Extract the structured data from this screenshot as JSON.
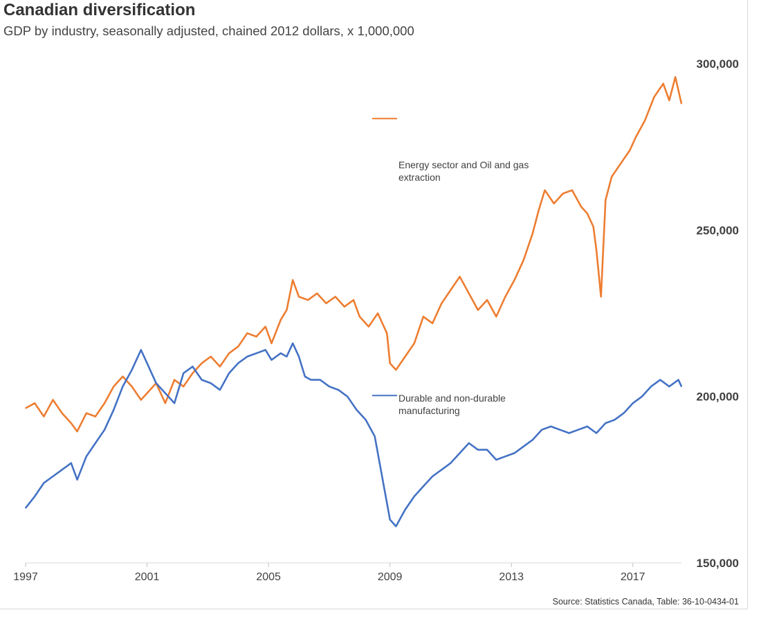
{
  "title": "Canadian diversification",
  "subtitle": "GDP by industry, seasonally adjusted, chained 2012 dollars, x 1,000,000",
  "source": "Source: Statistics Canada, Table: 36-10-0434-01",
  "colors": {
    "energy": "#ed7d31",
    "manufacturing": "#4472c4"
  },
  "chart_data": {
    "type": "line",
    "title": "Canadian diversification",
    "subtitle": "GDP by industry, seasonally adjusted, chained 2012 dollars, x 1,000,000",
    "x_ticks": [
      "1997",
      "2001",
      "2005",
      "2009",
      "2013",
      "2017"
    ],
    "y_ticks": [
      "150,000",
      "200,000",
      "250,000",
      "300,000"
    ],
    "xlim": [
      1997,
      2018.6
    ],
    "ylim": [
      150000,
      300000
    ],
    "y_axis_side": "right",
    "grid": false,
    "series": [
      {
        "name": "Energy sector and Oil and gas extraction",
        "label_lines": [
          "Energy sector and Oil and gas",
          "extraction"
        ],
        "color": "#ed7d31",
        "points": [
          [
            1997.0,
            196500
          ],
          [
            1997.3,
            198000
          ],
          [
            1997.6,
            194000
          ],
          [
            1997.9,
            199000
          ],
          [
            1998.2,
            195000
          ],
          [
            1998.5,
            192000
          ],
          [
            1998.7,
            189500
          ],
          [
            1999.0,
            195000
          ],
          [
            1999.3,
            194000
          ],
          [
            1999.6,
            198000
          ],
          [
            1999.9,
            203000
          ],
          [
            2000.2,
            206000
          ],
          [
            2000.5,
            203000
          ],
          [
            2000.8,
            199000
          ],
          [
            2001.0,
            201000
          ],
          [
            2001.3,
            204000
          ],
          [
            2001.6,
            198000
          ],
          [
            2001.9,
            205000
          ],
          [
            2002.2,
            203000
          ],
          [
            2002.5,
            207000
          ],
          [
            2002.8,
            210000
          ],
          [
            2003.1,
            212000
          ],
          [
            2003.4,
            209000
          ],
          [
            2003.7,
            213000
          ],
          [
            2004.0,
            215000
          ],
          [
            2004.3,
            219000
          ],
          [
            2004.6,
            218000
          ],
          [
            2004.9,
            221000
          ],
          [
            2005.1,
            216000
          ],
          [
            2005.4,
            223000
          ],
          [
            2005.6,
            226000
          ],
          [
            2005.8,
            235000
          ],
          [
            2006.0,
            230000
          ],
          [
            2006.3,
            229000
          ],
          [
            2006.6,
            231000
          ],
          [
            2006.9,
            228000
          ],
          [
            2007.2,
            230000
          ],
          [
            2007.5,
            227000
          ],
          [
            2007.8,
            229000
          ],
          [
            2008.0,
            224000
          ],
          [
            2008.3,
            221000
          ],
          [
            2008.6,
            225000
          ],
          [
            2008.9,
            219000
          ],
          [
            2009.0,
            210000
          ],
          [
            2009.2,
            208000
          ],
          [
            2009.5,
            212000
          ],
          [
            2009.8,
            216000
          ],
          [
            2010.1,
            224000
          ],
          [
            2010.4,
            222000
          ],
          [
            2010.7,
            228000
          ],
          [
            2011.0,
            232000
          ],
          [
            2011.3,
            236000
          ],
          [
            2011.6,
            231000
          ],
          [
            2011.9,
            226000
          ],
          [
            2012.2,
            229000
          ],
          [
            2012.5,
            224000
          ],
          [
            2012.8,
            230000
          ],
          [
            2013.1,
            235000
          ],
          [
            2013.4,
            241000
          ],
          [
            2013.7,
            249000
          ],
          [
            2013.9,
            256000
          ],
          [
            2014.1,
            262000
          ],
          [
            2014.4,
            258000
          ],
          [
            2014.7,
            261000
          ],
          [
            2015.0,
            262000
          ],
          [
            2015.3,
            257000
          ],
          [
            2015.5,
            255000
          ],
          [
            2015.7,
            251000
          ],
          [
            2015.8,
            244000
          ],
          [
            2015.95,
            230000
          ],
          [
            2016.1,
            259000
          ],
          [
            2016.3,
            266000
          ],
          [
            2016.6,
            270000
          ],
          [
            2016.9,
            274000
          ],
          [
            2017.1,
            278000
          ],
          [
            2017.4,
            283000
          ],
          [
            2017.7,
            290000
          ],
          [
            2018.0,
            294000
          ],
          [
            2018.2,
            289000
          ],
          [
            2018.4,
            296000
          ],
          [
            2018.6,
            288000
          ]
        ]
      },
      {
        "name": "Durable and non-durable manufacturing",
        "label_lines": [
          "Durable and non-durable",
          "manufacturing"
        ],
        "color": "#4472c4",
        "points": [
          [
            1997.0,
            166500
          ],
          [
            1997.3,
            170000
          ],
          [
            1997.6,
            174000
          ],
          [
            1997.9,
            176000
          ],
          [
            1998.2,
            178000
          ],
          [
            1998.5,
            180000
          ],
          [
            1998.7,
            175000
          ],
          [
            1999.0,
            182000
          ],
          [
            1999.3,
            186000
          ],
          [
            1999.6,
            190000
          ],
          [
            1999.9,
            196000
          ],
          [
            2000.2,
            203000
          ],
          [
            2000.5,
            208000
          ],
          [
            2000.8,
            214000
          ],
          [
            2001.0,
            210000
          ],
          [
            2001.3,
            204000
          ],
          [
            2001.6,
            201000
          ],
          [
            2001.9,
            198000
          ],
          [
            2002.2,
            207000
          ],
          [
            2002.5,
            209000
          ],
          [
            2002.8,
            205000
          ],
          [
            2003.1,
            204000
          ],
          [
            2003.4,
            202000
          ],
          [
            2003.7,
            207000
          ],
          [
            2004.0,
            210000
          ],
          [
            2004.3,
            212000
          ],
          [
            2004.6,
            213000
          ],
          [
            2004.9,
            214000
          ],
          [
            2005.1,
            211000
          ],
          [
            2005.4,
            213000
          ],
          [
            2005.6,
            212000
          ],
          [
            2005.8,
            216000
          ],
          [
            2006.0,
            212000
          ],
          [
            2006.2,
            206000
          ],
          [
            2006.4,
            205000
          ],
          [
            2006.7,
            205000
          ],
          [
            2007.0,
            203000
          ],
          [
            2007.3,
            202000
          ],
          [
            2007.6,
            200000
          ],
          [
            2007.9,
            196000
          ],
          [
            2008.2,
            193000
          ],
          [
            2008.5,
            188000
          ],
          [
            2008.7,
            178000
          ],
          [
            2008.9,
            168000
          ],
          [
            2009.0,
            163000
          ],
          [
            2009.2,
            161000
          ],
          [
            2009.5,
            166000
          ],
          [
            2009.8,
            170000
          ],
          [
            2010.1,
            173000
          ],
          [
            2010.4,
            176000
          ],
          [
            2010.7,
            178000
          ],
          [
            2011.0,
            180000
          ],
          [
            2011.3,
            183000
          ],
          [
            2011.6,
            186000
          ],
          [
            2011.9,
            184000
          ],
          [
            2012.2,
            184000
          ],
          [
            2012.5,
            181000
          ],
          [
            2012.8,
            182000
          ],
          [
            2013.1,
            183000
          ],
          [
            2013.4,
            185000
          ],
          [
            2013.7,
            187000
          ],
          [
            2014.0,
            190000
          ],
          [
            2014.3,
            191000
          ],
          [
            2014.6,
            190000
          ],
          [
            2014.9,
            189000
          ],
          [
            2015.2,
            190000
          ],
          [
            2015.5,
            191000
          ],
          [
            2015.8,
            189000
          ],
          [
            2016.1,
            192000
          ],
          [
            2016.4,
            193000
          ],
          [
            2016.7,
            195000
          ],
          [
            2017.0,
            198000
          ],
          [
            2017.3,
            200000
          ],
          [
            2017.6,
            203000
          ],
          [
            2017.9,
            205000
          ],
          [
            2018.2,
            203000
          ],
          [
            2018.5,
            205000
          ],
          [
            2018.6,
            203000
          ]
        ]
      }
    ]
  }
}
